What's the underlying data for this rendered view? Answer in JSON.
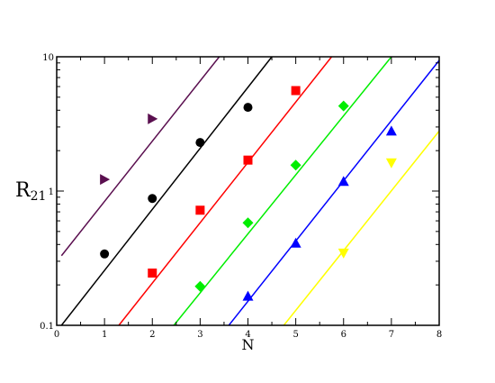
{
  "chart_data": {
    "type": "scatter",
    "title": "",
    "xlabel": "N",
    "ylabel": {
      "main": "R",
      "sub": "21"
    },
    "xlim": [
      0,
      8
    ],
    "ylim": [
      0.1,
      10
    ],
    "y_scale": "log",
    "x_ticks": [
      "0",
      "1",
      "2",
      "3",
      "4",
      "5",
      "6",
      "7",
      "8"
    ],
    "y_ticks": [
      {
        "value": 0.1,
        "label": "0.1"
      },
      {
        "value": 1,
        "label": "1"
      },
      {
        "value": 10,
        "label": "10"
      }
    ],
    "grid": false,
    "legend": "none",
    "series": [
      {
        "color": "#5a0f4f",
        "marker": "triangle-right",
        "points": [
          [
            1,
            1.22
          ],
          [
            2,
            3.45
          ]
        ],
        "fit_line": {
          "x1": 0.1,
          "y1": 0.33,
          "x2": 3.4,
          "y2": 10
        }
      },
      {
        "color": "#000000",
        "marker": "circle",
        "points": [
          [
            1,
            0.34
          ],
          [
            2,
            0.88
          ],
          [
            3,
            2.3
          ],
          [
            4,
            4.2
          ]
        ],
        "fit_line": {
          "x1": 0.1,
          "y1": 0.1,
          "x2": 4.5,
          "y2": 10
        }
      },
      {
        "color": "#ff0000",
        "marker": "square",
        "points": [
          [
            2,
            0.245
          ],
          [
            3,
            0.72
          ],
          [
            4,
            1.7
          ],
          [
            5,
            5.6
          ]
        ],
        "fit_line": {
          "x1": 1.3,
          "y1": 0.1,
          "x2": 5.75,
          "y2": 10
        }
      },
      {
        "color": "#00ee00",
        "marker": "diamond",
        "points": [
          [
            3,
            0.195
          ],
          [
            4,
            0.58
          ],
          [
            5,
            1.56
          ],
          [
            6,
            4.3
          ]
        ],
        "fit_line": {
          "x1": 2.45,
          "y1": 0.1,
          "x2": 7.0,
          "y2": 10
        }
      },
      {
        "color": "#0000ff",
        "marker": "triangle-up",
        "points": [
          [
            4,
            0.165
          ],
          [
            5,
            0.41
          ],
          [
            6,
            1.18
          ],
          [
            7,
            2.8
          ]
        ],
        "fit_line": {
          "x1": 3.6,
          "y1": 0.1,
          "x2": 8.0,
          "y2": 9.4
        }
      },
      {
        "color": "#ffff00",
        "marker": "triangle-down",
        "points": [
          [
            6,
            0.345
          ],
          [
            7,
            1.62
          ]
        ],
        "fit_line": {
          "x1": 4.75,
          "y1": 0.1,
          "x2": 8.0,
          "y2": 2.8
        }
      }
    ]
  }
}
